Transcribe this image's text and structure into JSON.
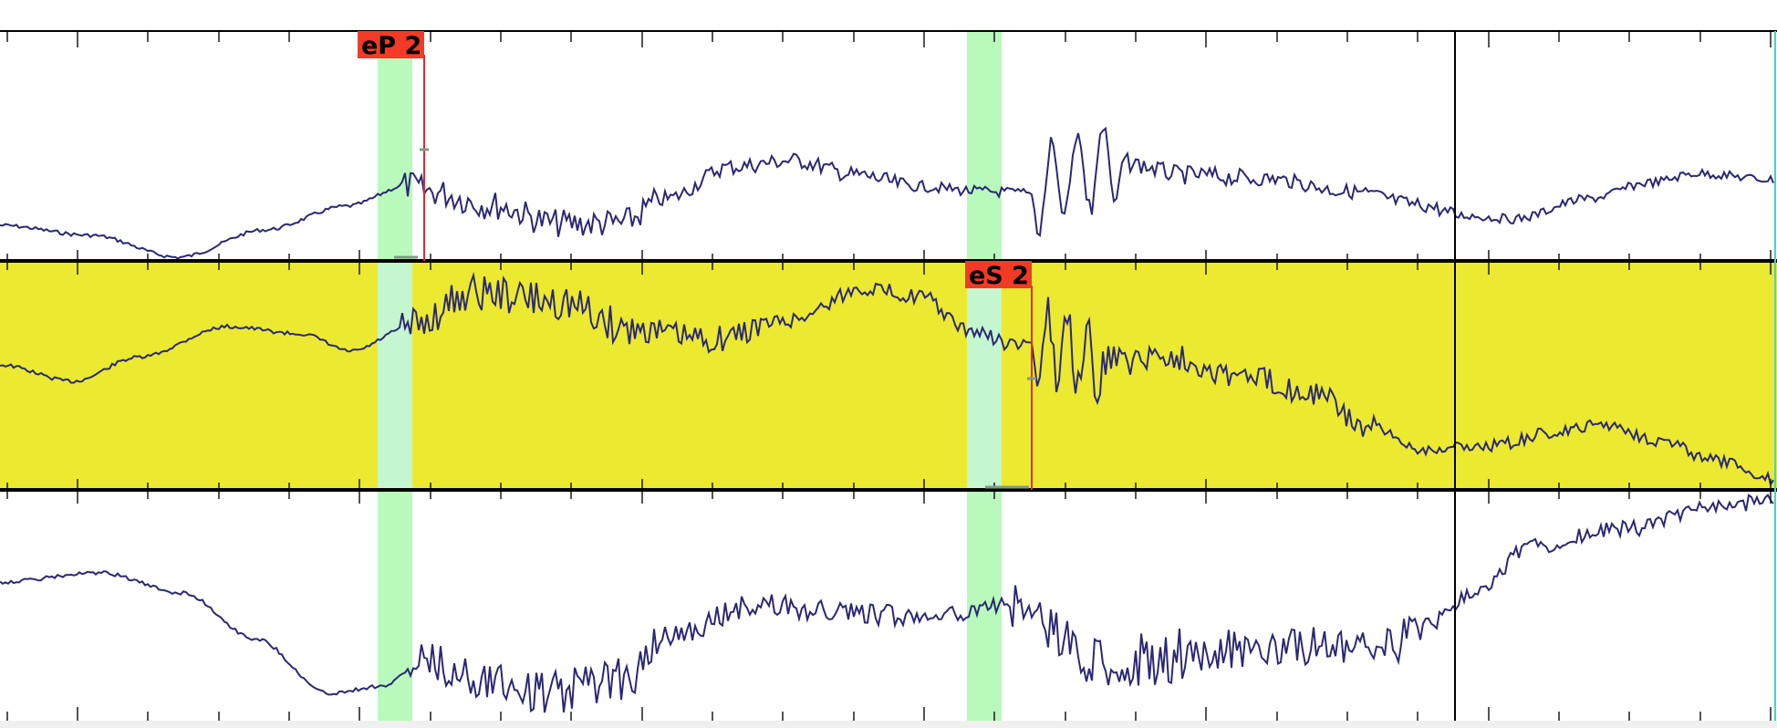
{
  "viewer": {
    "colors": {
      "background": "#ffffff",
      "selected_trace_background": "#ebe930",
      "trace": "#2b2873",
      "pick_marker": "#e02b2b",
      "pick_label_fill": "#f23a26",
      "pick_label_text": "#000000",
      "pick_window": "#b9f9bc",
      "border": "#000000",
      "tick_mark": "#1a1a1a",
      "time_cursor": "#000000"
    },
    "traces": [
      {
        "selected": false,
        "shape": "p1"
      },
      {
        "selected": true,
        "shape": "p2"
      },
      {
        "selected": false,
        "shape": "p3"
      }
    ],
    "picks": [
      {
        "label": "eP 2",
        "trace": 0
      },
      {
        "label": "eS 2",
        "trace": 1
      }
    ],
    "pick_windows": 2,
    "time_cursor": true
  }
}
